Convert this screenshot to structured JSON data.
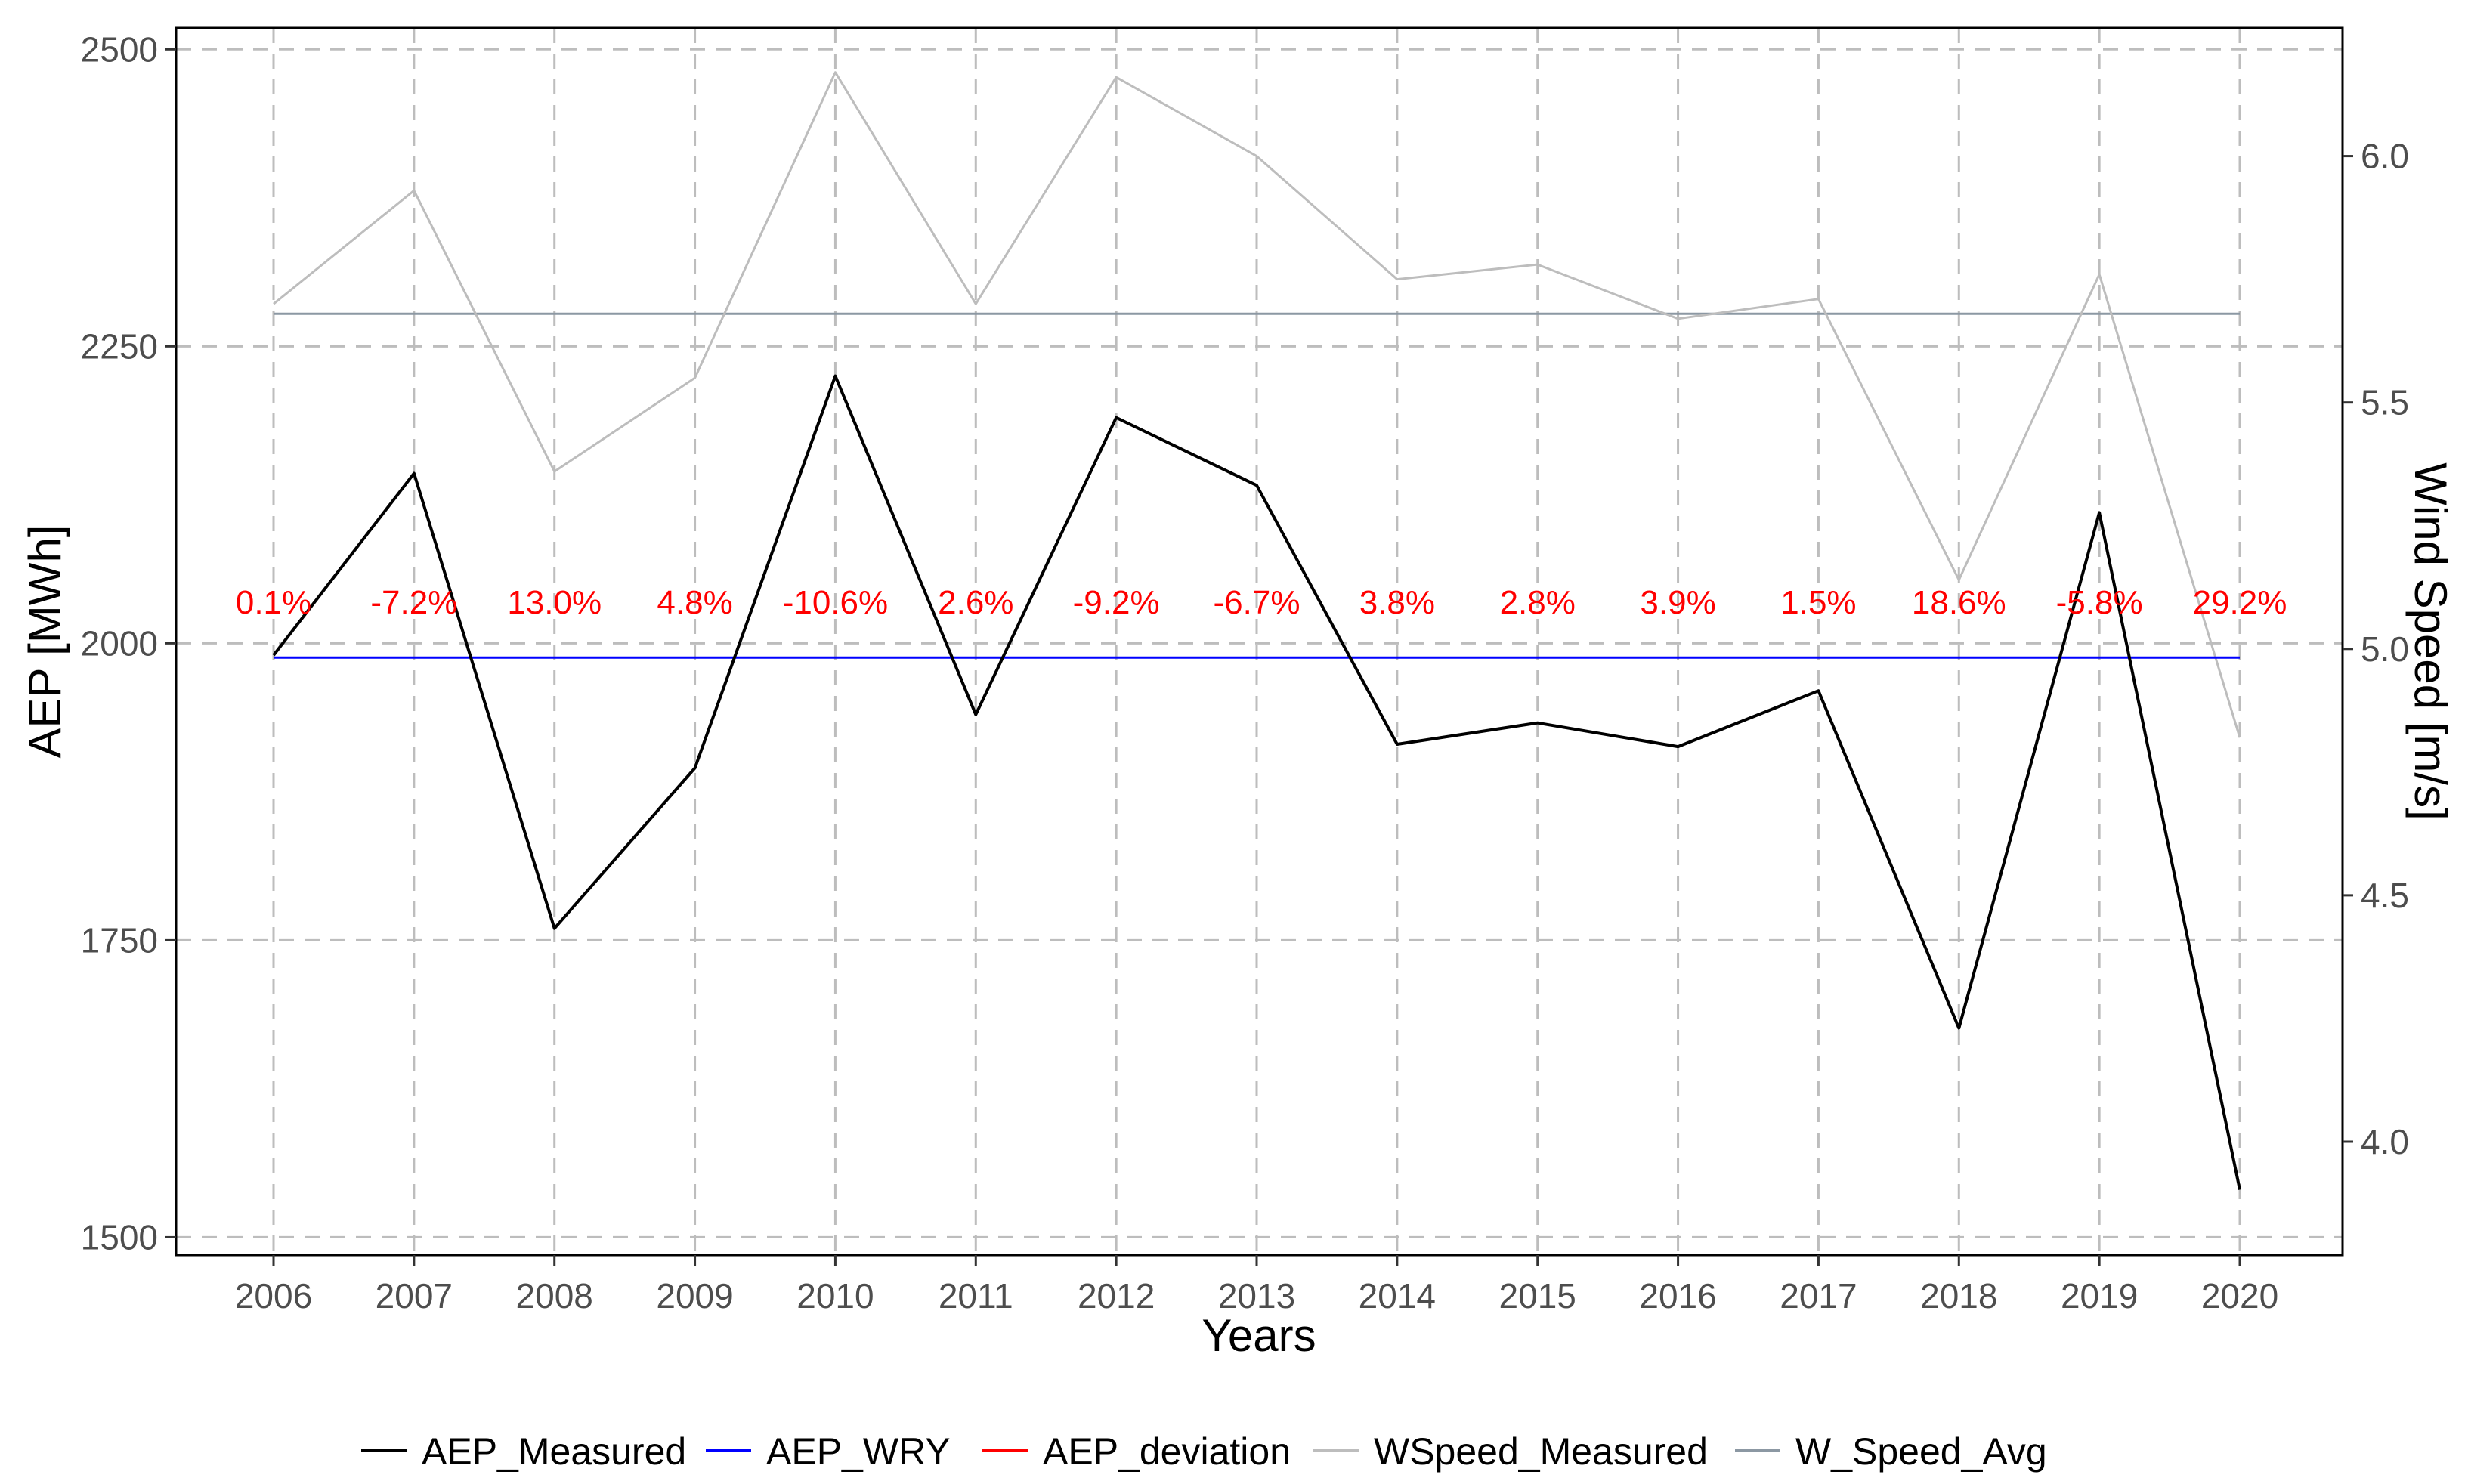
{
  "chart_data": {
    "type": "line",
    "xlabel": "Years",
    "ylabel_left": "AEP [MWh]",
    "ylabel_right": "Wind Speed [m/s]",
    "x": [
      2006,
      2007,
      2008,
      2009,
      2010,
      2011,
      2012,
      2013,
      2014,
      2015,
      2016,
      2017,
      2018,
      2019,
      2020
    ],
    "ylim_left": [
      1485,
      2518
    ],
    "yticks_left": [
      1500,
      1750,
      2000,
      2250,
      2500
    ],
    "ylim_right": [
      3.77,
      6.26
    ],
    "yticks_right": [
      4.0,
      4.5,
      5.0,
      5.5,
      6.0
    ],
    "grid": true,
    "legend_position": "bottom",
    "series": [
      {
        "name": "AEP_Measured",
        "axis": "left",
        "color": "#000000",
        "values": [
          1990,
          2143,
          1760,
          1895,
          2225,
          1940,
          2190,
          2133,
          1915,
          1933,
          1913,
          1960,
          1676,
          2110,
          1540
        ]
      },
      {
        "name": "AEP_WRY",
        "axis": "left",
        "color": "#0000ff",
        "values": [
          1988,
          1988,
          1988,
          1988,
          1988,
          1988,
          1988,
          1988,
          1988,
          1988,
          1988,
          1988,
          1988,
          1988,
          1988
        ]
      },
      {
        "name": "AEP_deviation",
        "axis": "left",
        "color": "#ff0000",
        "labels": [
          "0.1%",
          "-7.2%",
          "13.0%",
          "4.8%",
          "-10.6%",
          "2.6%",
          "-9.2%",
          "-6.7%",
          "3.8%",
          "2.8%",
          "3.9%",
          "1.5%",
          "18.6%",
          "-5.8%",
          "29.2%"
        ]
      },
      {
        "name": "WSpeed_Measured",
        "axis": "right",
        "color": "#bdbdbd",
        "values": [
          5.7,
          5.93,
          5.36,
          5.55,
          6.17,
          5.7,
          6.16,
          6.0,
          5.75,
          5.78,
          5.67,
          5.71,
          5.14,
          5.76,
          4.82
        ]
      },
      {
        "name": "W_Speed_Avg",
        "axis": "right",
        "color": "#8c98a3",
        "values": [
          5.68,
          5.68,
          5.68,
          5.68,
          5.68,
          5.68,
          5.68,
          5.68,
          5.68,
          5.68,
          5.68,
          5.68,
          5.68,
          5.68,
          5.68
        ]
      }
    ]
  }
}
